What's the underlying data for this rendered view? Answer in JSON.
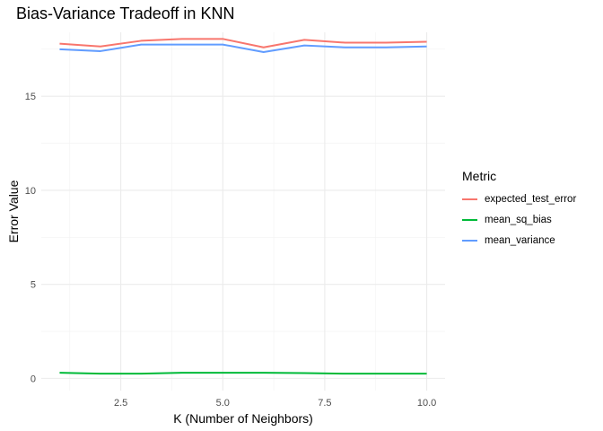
{
  "chart_data": {
    "type": "line",
    "title": "Bias-Variance Tradeoff in KNN",
    "xlabel": "K (Number of Neighbors)",
    "ylabel": "Error Value",
    "x": [
      1,
      2,
      3,
      4,
      5,
      6,
      7,
      8,
      9,
      10
    ],
    "xlim": [
      0.55,
      10.45
    ],
    "ylim": [
      -0.65,
      18.4
    ],
    "x_ticks": [
      2.5,
      5.0,
      7.5,
      10.0
    ],
    "x_tick_labels": [
      "2.5",
      "5.0",
      "7.5",
      "10.0"
    ],
    "y_ticks": [
      0,
      5,
      10,
      15
    ],
    "y_tick_labels": [
      "0",
      "5",
      "10",
      "15"
    ],
    "grid": true,
    "legend_title": "Metric",
    "legend_position": "right",
    "series": [
      {
        "name": "expected_test_error",
        "color": "#F8766D",
        "values": [
          17.8,
          17.65,
          17.95,
          18.05,
          18.05,
          17.6,
          18.0,
          17.85,
          17.85,
          17.9
        ]
      },
      {
        "name": "mean_sq_bias",
        "color": "#00BA38",
        "values": [
          0.3,
          0.25,
          0.25,
          0.3,
          0.3,
          0.3,
          0.28,
          0.25,
          0.25,
          0.25
        ]
      },
      {
        "name": "mean_variance",
        "color": "#619CFF",
        "values": [
          17.5,
          17.4,
          17.75,
          17.75,
          17.75,
          17.35,
          17.7,
          17.6,
          17.6,
          17.65
        ]
      }
    ]
  }
}
